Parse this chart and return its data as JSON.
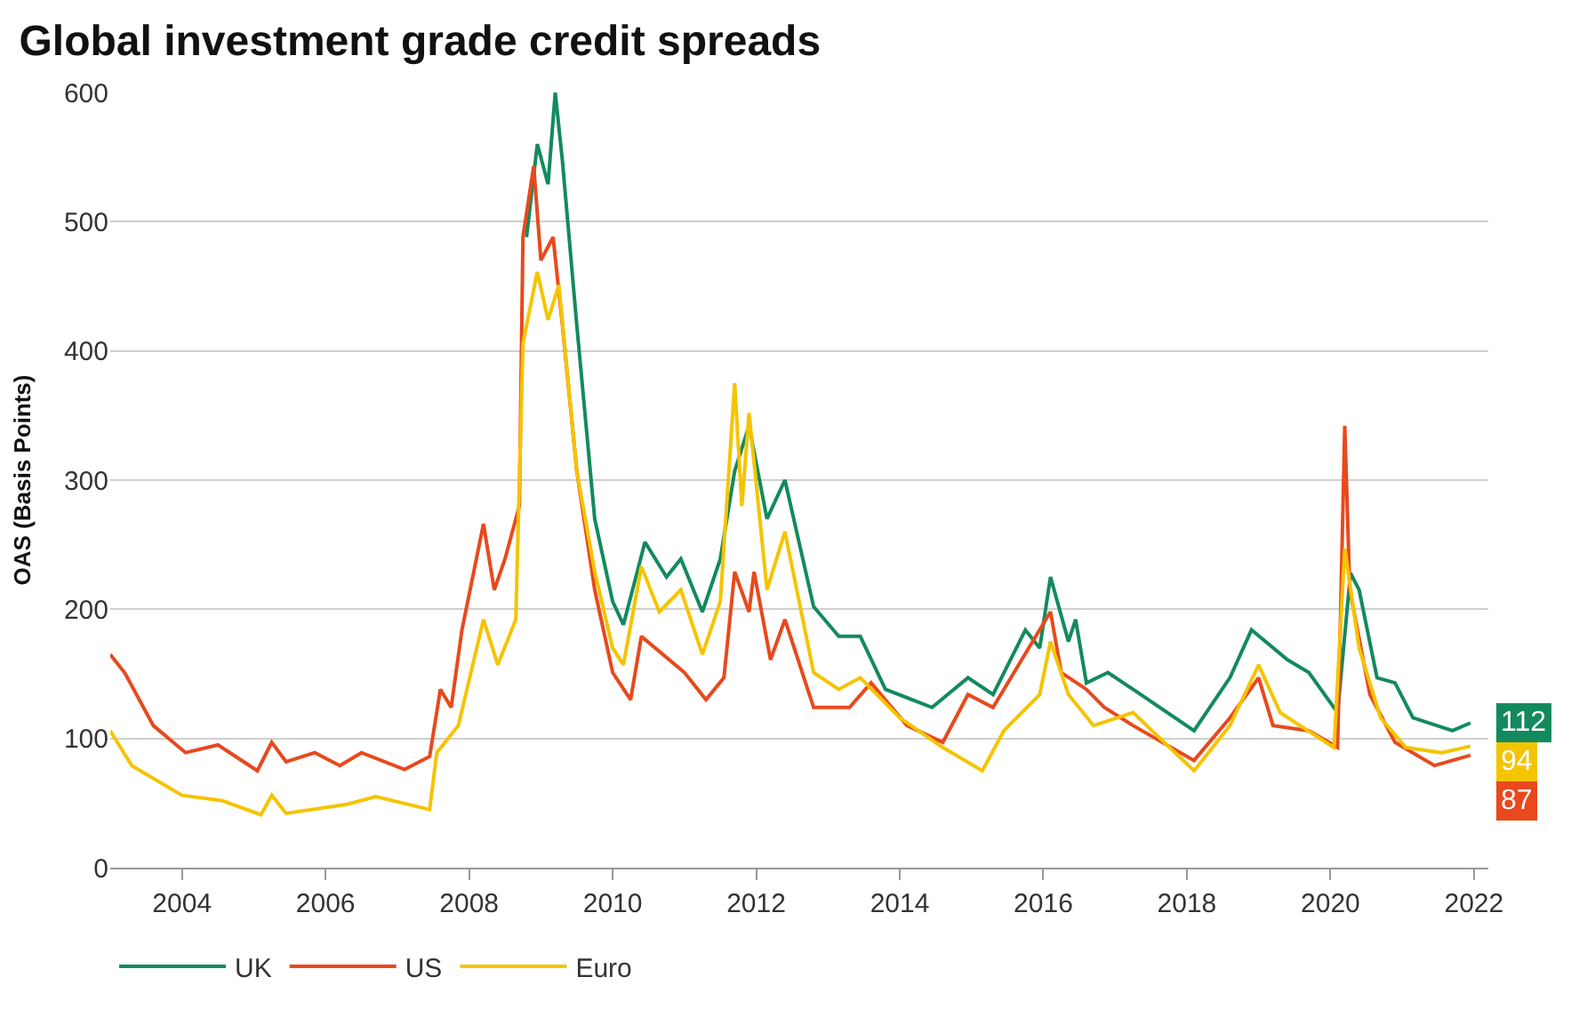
{
  "chart_data": {
    "type": "line",
    "title": "Global investment grade credit spreads",
    "ylabel": "OAS (Basis Points)",
    "xlim": [
      2003,
      2022.2
    ],
    "xticks": [
      2004,
      2006,
      2008,
      2010,
      2012,
      2014,
      2016,
      2018,
      2020,
      2022
    ],
    "ylim": [
      0,
      600
    ],
    "yticks": [
      0,
      100,
      200,
      300,
      400,
      500,
      600
    ],
    "grid": "y",
    "legend": "bottom left",
    "marker": "none",
    "line_style": "solid",
    "series": [
      {
        "name": "UK",
        "color": "#138a5e",
        "x": [
          2008.8,
          2008.95,
          2009.1,
          2009.2,
          2009.3,
          2009.5,
          2009.75,
          2010.0,
          2010.15,
          2010.45,
          2010.75,
          2010.95,
          2011.25,
          2011.5,
          2011.7,
          2011.9,
          2012.15,
          2012.4,
          2012.8,
          2013.15,
          2013.45,
          2013.8,
          2014.45,
          2014.95,
          2015.3,
          2015.75,
          2015.95,
          2016.1,
          2016.35,
          2016.45,
          2016.6,
          2016.9,
          2017.25,
          2018.1,
          2018.6,
          2018.9,
          2019.4,
          2019.7,
          2020.1,
          2020.28,
          2020.4,
          2020.65,
          2020.9,
          2021.15,
          2021.7,
          2021.95
        ],
        "values": [
          488,
          560,
          529,
          600,
          547,
          420,
          270,
          206,
          188,
          252,
          225,
          239,
          198,
          239,
          307,
          342,
          270,
          300,
          202,
          179,
          179,
          138,
          124,
          147,
          134,
          184,
          170,
          225,
          175,
          192,
          143,
          151,
          138,
          106,
          147,
          184,
          161,
          151,
          120,
          228,
          215,
          147,
          143,
          116,
          106,
          112
        ],
        "value_labels": [
          null,
          null,
          null,
          null,
          null,
          null,
          null,
          null,
          null,
          null,
          null,
          null,
          null,
          null,
          null,
          null,
          null,
          null,
          null,
          null,
          null,
          null,
          null,
          null,
          null,
          null,
          null,
          null,
          null,
          null,
          null,
          null,
          null,
          null,
          null,
          null,
          null,
          null,
          null,
          null,
          null,
          null,
          null,
          null,
          null,
          "112"
        ]
      },
      {
        "name": "US",
        "color": "#e8491d",
        "x": [
          2003.0,
          2003.2,
          2003.6,
          2004.05,
          2004.5,
          2005.05,
          2005.25,
          2005.45,
          2005.85,
          2006.2,
          2006.5,
          2007.1,
          2007.45,
          2007.6,
          2007.75,
          2007.9,
          2008.2,
          2008.35,
          2008.5,
          2008.7,
          2008.75,
          2008.9,
          2009.0,
          2009.17,
          2009.3,
          2009.5,
          2009.75,
          2010.0,
          2010.25,
          2010.4,
          2011.0,
          2011.3,
          2011.55,
          2011.7,
          2011.9,
          2011.97,
          2012.2,
          2012.4,
          2012.8,
          2013.3,
          2013.6,
          2014.1,
          2014.6,
          2014.95,
          2015.3,
          2015.7,
          2016.1,
          2016.25,
          2016.6,
          2016.85,
          2017.25,
          2018.1,
          2018.6,
          2019.0,
          2019.2,
          2019.7,
          2020.1,
          2020.2,
          2020.27,
          2020.55,
          2020.9,
          2021.45,
          2021.95
        ],
        "values": [
          165,
          151,
          110,
          89,
          95,
          75,
          97,
          82,
          89,
          79,
          89,
          76,
          86,
          138,
          124,
          184,
          266,
          215,
          239,
          280,
          488,
          543,
          470,
          488,
          420,
          307,
          215,
          151,
          130,
          179,
          151,
          130,
          147,
          229,
          198,
          229,
          161,
          192,
          124,
          124,
          143,
          110,
          97,
          134,
          124,
          161,
          198,
          151,
          138,
          124,
          110,
          83,
          116,
          147,
          110,
          106,
          93,
          342,
          215,
          134,
          97,
          79,
          87
        ],
        "value_labels": [
          null,
          null,
          null,
          null,
          null,
          null,
          null,
          null,
          null,
          null,
          null,
          null,
          null,
          null,
          null,
          null,
          null,
          null,
          null,
          null,
          null,
          null,
          null,
          null,
          null,
          null,
          null,
          null,
          null,
          null,
          null,
          null,
          null,
          null,
          null,
          null,
          null,
          null,
          null,
          null,
          null,
          null,
          null,
          null,
          null,
          null,
          null,
          null,
          null,
          null,
          null,
          null,
          null,
          null,
          null,
          null,
          null,
          null,
          null,
          null,
          null,
          null,
          "87"
        ]
      },
      {
        "name": "Euro",
        "color": "#f5c400",
        "x": [
          2003.0,
          2003.3,
          2004.0,
          2004.55,
          2005.1,
          2005.25,
          2005.45,
          2006.3,
          2006.7,
          2007.45,
          2007.55,
          2007.85,
          2008.2,
          2008.4,
          2008.65,
          2008.75,
          2008.95,
          2009.1,
          2009.25,
          2009.5,
          2009.75,
          2010.0,
          2010.15,
          2010.4,
          2010.65,
          2010.95,
          2011.25,
          2011.5,
          2011.7,
          2011.8,
          2011.9,
          2012.15,
          2012.4,
          2012.8,
          2013.15,
          2013.45,
          2014.0,
          2014.6,
          2015.15,
          2015.45,
          2015.95,
          2016.1,
          2016.35,
          2016.7,
          2017.25,
          2018.1,
          2018.6,
          2019.0,
          2019.3,
          2020.05,
          2020.2,
          2020.4,
          2020.7,
          2021.05,
          2021.55,
          2021.95
        ],
        "values": [
          106,
          79,
          56,
          52,
          41,
          56,
          42,
          49,
          55,
          45,
          89,
          110,
          192,
          157,
          192,
          406,
          461,
          424,
          451,
          307,
          229,
          170,
          157,
          233,
          198,
          215,
          165,
          206,
          375,
          280,
          352,
          215,
          260,
          151,
          138,
          147,
          116,
          93,
          75,
          106,
          134,
          175,
          134,
          110,
          120,
          75,
          110,
          157,
          120,
          93,
          247,
          170,
          116,
          93,
          89,
          94
        ],
        "value_labels": [
          null,
          null,
          null,
          null,
          null,
          null,
          null,
          null,
          null,
          null,
          null,
          null,
          null,
          null,
          null,
          null,
          null,
          null,
          null,
          null,
          null,
          null,
          null,
          null,
          null,
          null,
          null,
          null,
          null,
          null,
          null,
          null,
          null,
          null,
          null,
          null,
          null,
          null,
          null,
          null,
          null,
          null,
          null,
          null,
          null,
          null,
          null,
          null,
          null,
          null,
          null,
          null,
          null,
          null,
          null,
          "94"
        ]
      }
    ]
  }
}
